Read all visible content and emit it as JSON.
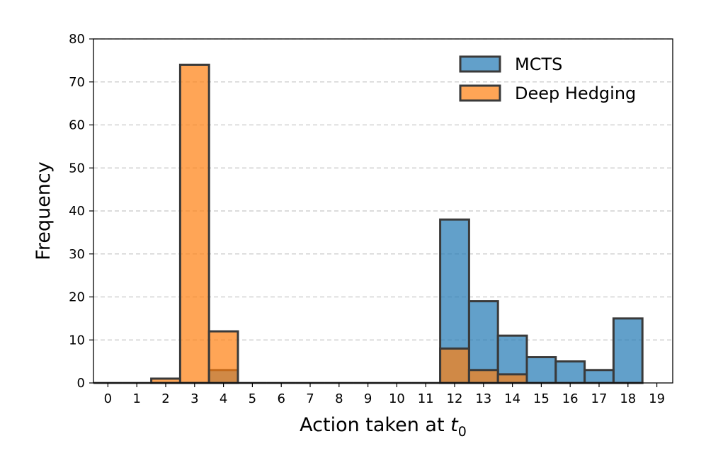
{
  "chart_data": {
    "type": "bar",
    "xlabel": "Action taken at",
    "xlabel_var": "t",
    "xlabel_sub": "0",
    "ylabel": "Frequency",
    "categories": [
      "0",
      "1",
      "2",
      "3",
      "4",
      "5",
      "6",
      "7",
      "8",
      "9",
      "10",
      "11",
      "12",
      "13",
      "14",
      "15",
      "16",
      "17",
      "18",
      "19"
    ],
    "yticks": [
      "0",
      "10",
      "20",
      "30",
      "40",
      "50",
      "60",
      "70",
      "80"
    ],
    "ylim": [
      0,
      80
    ],
    "grid": "horizontal-dashed",
    "legend_position": "top-right",
    "series": [
      {
        "name": "MCTS",
        "color": "#1f77b4",
        "values": [
          0,
          0,
          0,
          0,
          3,
          0,
          0,
          0,
          0,
          0,
          0,
          0,
          38,
          19,
          11,
          6,
          5,
          3,
          15,
          0
        ]
      },
      {
        "name": "Deep Hedging",
        "color": "#ff7f0e",
        "values": [
          0,
          0,
          1,
          74,
          12,
          0,
          0,
          0,
          0,
          0,
          0,
          0,
          8,
          3,
          2,
          0,
          0,
          0,
          0,
          0
        ]
      }
    ]
  }
}
